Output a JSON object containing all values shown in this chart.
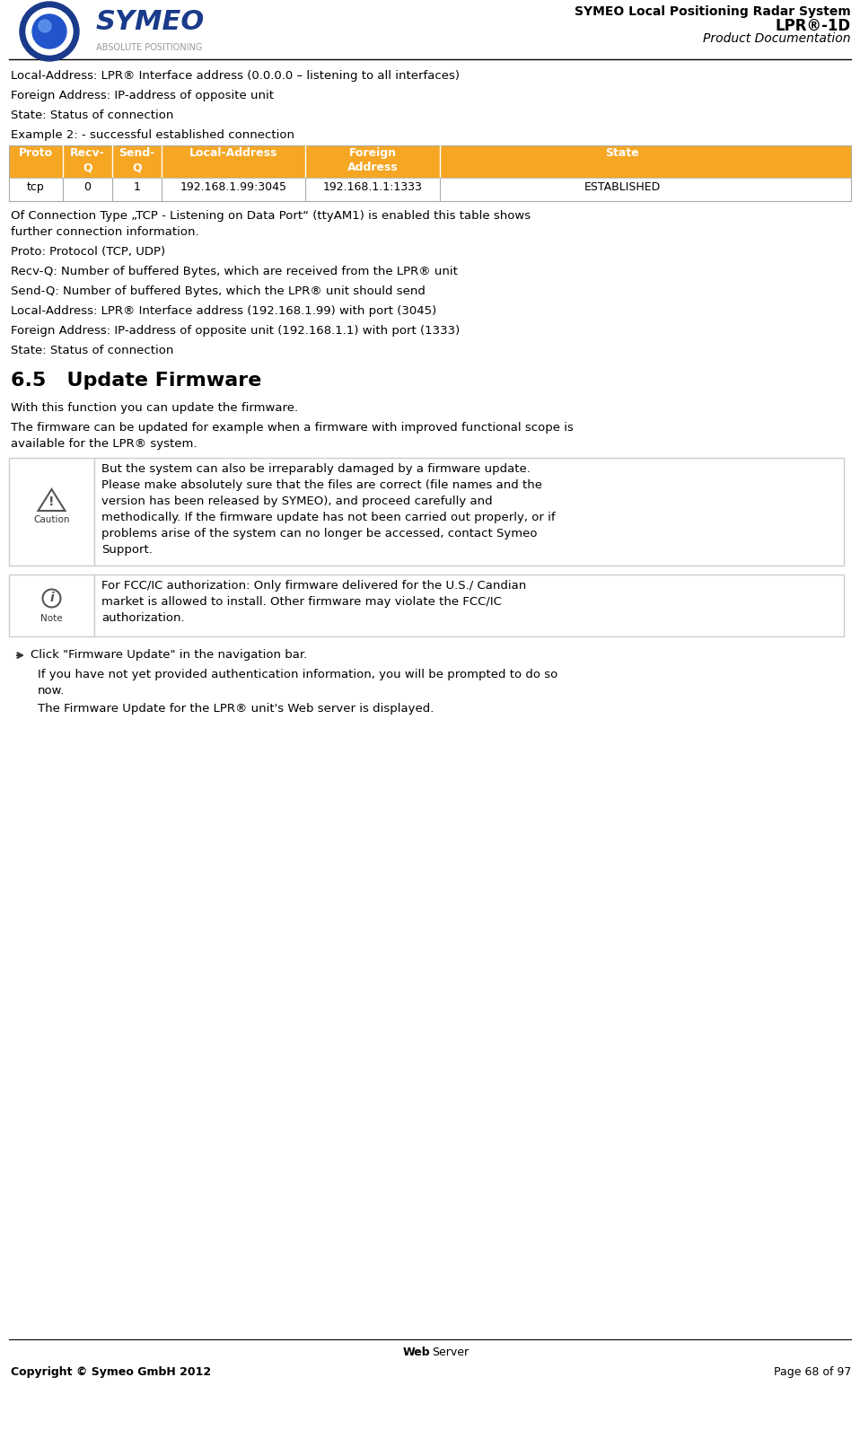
{
  "page_width": 9.58,
  "page_height": 15.93,
  "bg_color": "#ffffff",
  "title_right_line1": "SYMEO Local Positioning Radar System",
  "title_right_line2": "LPR®-1D",
  "title_right_line3": "Product Documentation",
  "footer_left": "Copyright © Symeo GmbH 2012",
  "footer_right": "Page 68 of 97",
  "table_header_bg": "#F5A623",
  "table_header_color": "#ffffff",
  "table_border_color": "#aaaaaa",
  "body_text_color": "#000000",
  "box_border_color": "#cccccc",
  "line1": "Local-Address: LPR® Interface address (0.0.0.0 – listening to all interfaces)",
  "line2": "Foreign Address: IP-address of opposite unit",
  "line3": "State: Status of connection",
  "line4": "Example 2: - successful established connection",
  "table_headers": [
    "Proto",
    "Recv-\nQ",
    "Send-\nQ",
    "Local-Address",
    "Foreign\nAddress",
    "State"
  ],
  "table_data": [
    "tcp",
    "0",
    "1",
    "192.168.1.99:3045",
    "192.168.1.1:1333",
    "ESTABLISHED"
  ],
  "after_table_text": "Of Connection Type „TCP - Listening on Data Port“ (ttyAM1) is enabled this table shows\nfurther connection information.",
  "proto_line": "Proto: Protocol (TCP, UDP)",
  "recv_line": "Recv-Q: Number of buffered Bytes, which are received from the LPR® unit",
  "send_line": "Send-Q: Number of buffered Bytes, which the LPR® unit should send",
  "local_line": "Local-Address: LPR® Interface address (192.168.1.99) with port (3045)",
  "foreign_line": "Foreign Address: IP-address of opposite unit (192.168.1.1) with port (1333)",
  "state_line": "State: Status of connection",
  "section_title": "6.5   Update Firmware",
  "section_intro": "With this function you can update the firmware.",
  "section_line2": "The firmware can be updated for example when a firmware with improved functional scope is\navailable for the LPR® system.",
  "caution_text": "But the system can also be irreparably damaged by a firmware update.\nPlease make absolutely sure that the files are correct (file names and the\nversion has been released by SYMEO), and proceed carefully and\nmethodically. If the firmware update has not been carried out properly, or if\nproblems arise of the system can no longer be accessed, contact Symeo\nSupport.",
  "note_text": "For FCC/IC authorization: Only firmware delivered for the U.S./ Candian\nmarket is allowed to install. Other firmware may violate the FCC/IC\nauthorization.",
  "click_line": "Click \"Firmware Update\" in the navigation bar.",
  "auth_line": "If you have not yet provided authentication information, you will be prompted to do so\nnow.",
  "firmware_line": "The Firmware Update for the LPR® unit's Web server is displayed."
}
